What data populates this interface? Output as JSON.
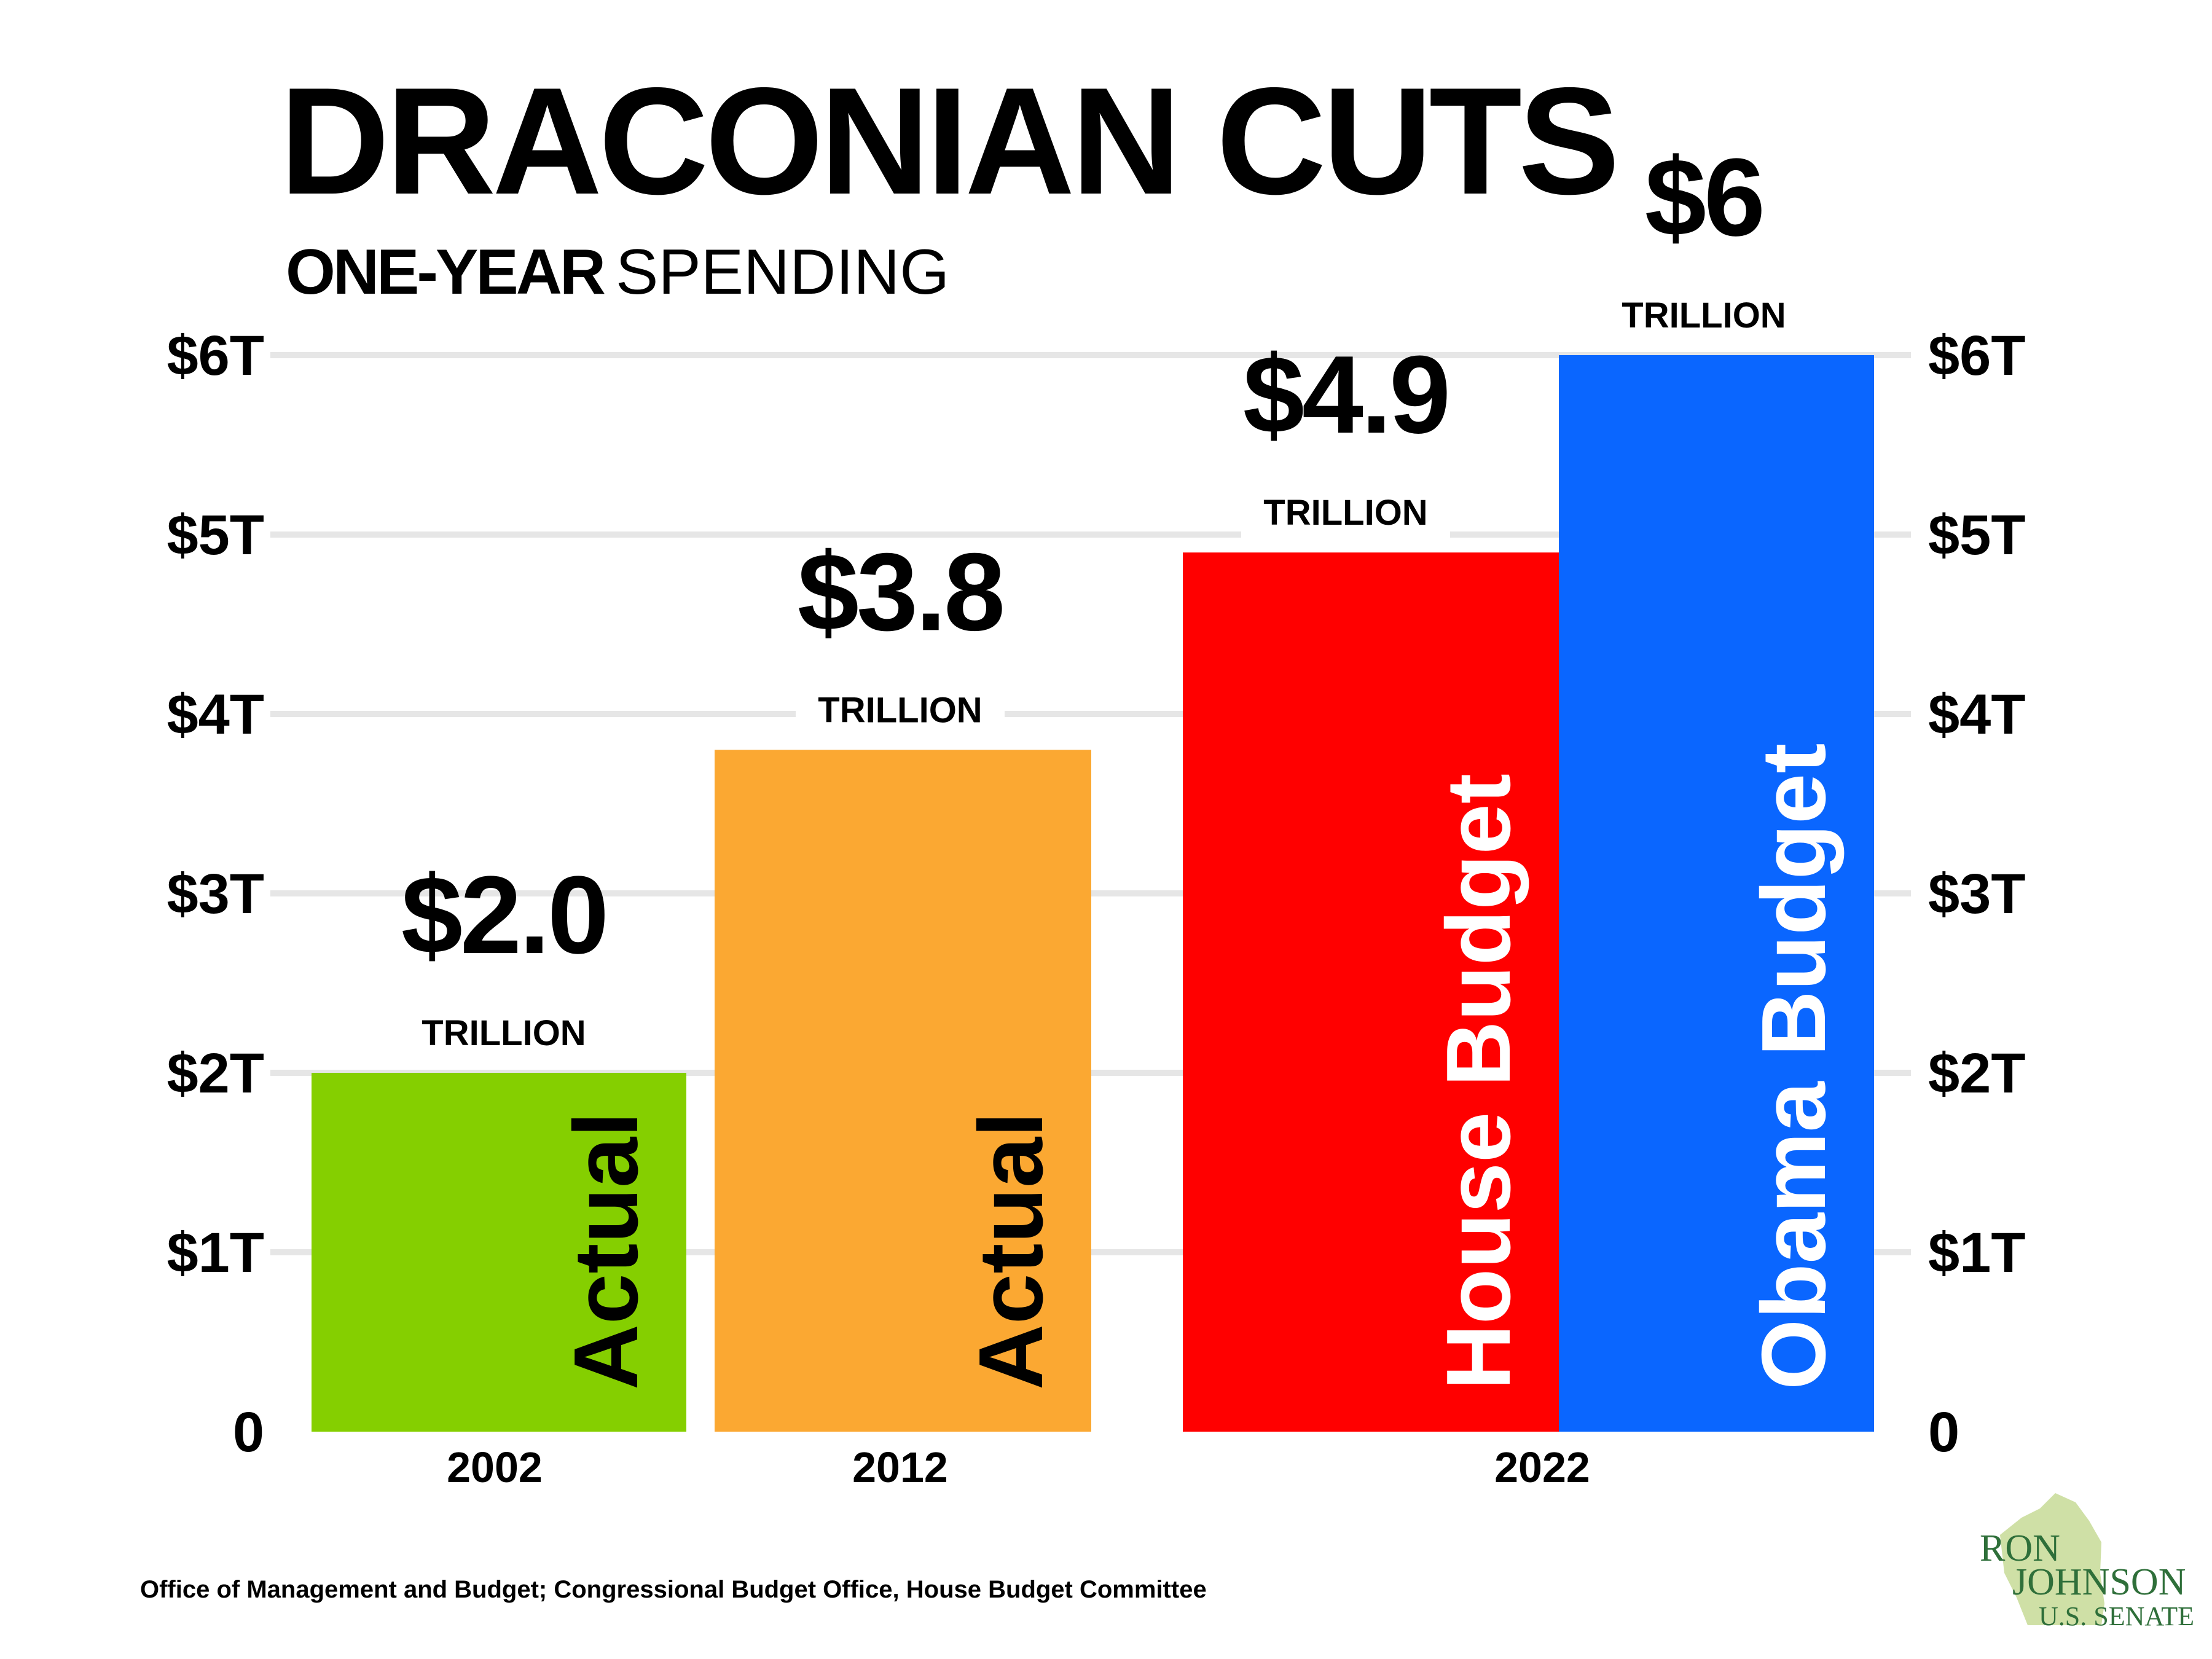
{
  "title": "DRACONIAN CUTS",
  "subtitle_bold": "ONE-YEAR",
  "subtitle_rest": "SPENDING",
  "source": "Office of Management and Budget; Congressional Budget Office, House Budget Committee",
  "logo": {
    "line1": "RON",
    "line2": "JOHNSON",
    "line3": "U.S. SENATE"
  },
  "colors": {
    "green": "#85cf00",
    "orange": "#fba832",
    "red": "#ff0000",
    "blue": "#0a66ff",
    "grid": "#e6e6e6",
    "logo_state": "#cfe0a6"
  },
  "chart_data": {
    "type": "bar",
    "title": "DRACONIAN CUTS",
    "subtitle": "ONE-YEAR SPENDING",
    "xlabel": "",
    "ylabel": "",
    "ylim": [
      0,
      6
    ],
    "y_ticks": [
      {
        "value": 0,
        "label": "0"
      },
      {
        "value": 1,
        "label": "$1T"
      },
      {
        "value": 2,
        "label": "$2T"
      },
      {
        "value": 3,
        "label": "$3T"
      },
      {
        "value": 4,
        "label": "$4T"
      },
      {
        "value": 5,
        "label": "$5T"
      },
      {
        "value": 6,
        "label": "$6T"
      }
    ],
    "grid": true,
    "categories": [
      "2002",
      "2012",
      "2022"
    ],
    "bars": [
      {
        "category": "2002",
        "value": 2.0,
        "value_label": "$2.0",
        "unit_label": "TRILLION",
        "bar_label": "Actual",
        "color": "#85cf00",
        "label_color": "#000000"
      },
      {
        "category": "2012",
        "value": 3.8,
        "value_label": "$3.8",
        "unit_label": "TRILLION",
        "bar_label": "Actual",
        "color": "#fba832",
        "label_color": "#000000"
      },
      {
        "category": "2022",
        "value": 4.9,
        "value_label": "$4.9",
        "unit_label": "TRILLION",
        "bar_label": "House Budget",
        "color": "#ff0000",
        "label_color": "#ffffff"
      },
      {
        "category": "2022",
        "value": 6.0,
        "value_label": "$6",
        "unit_label": "TRILLION",
        "bar_label": "Obama Budget",
        "color": "#0a66ff",
        "label_color": "#ffffff"
      }
    ]
  }
}
